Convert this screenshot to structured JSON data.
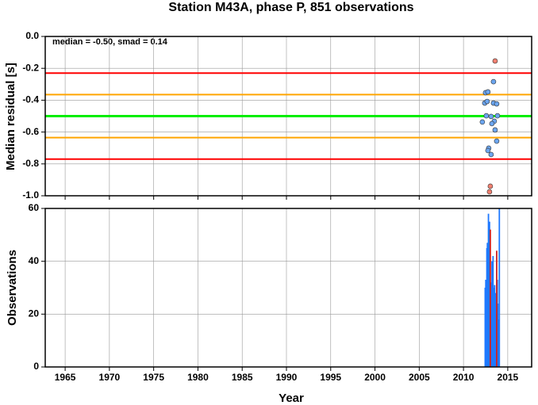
{
  "chart_data": [
    {
      "type": "scatter",
      "title": "Station M43A, phase P, 851 observations",
      "ylabel": "Median residual [s]",
      "annotation": "median = -0.50, smad = 0.14",
      "xlim": [
        1962.75,
        2017.7
      ],
      "xticks": [
        1965,
        1970,
        1975,
        1980,
        1985,
        1990,
        1995,
        2000,
        2005,
        2010,
        2015
      ],
      "ylim": [
        -1,
        0
      ],
      "yticks": [
        {
          "value": 0,
          "label": "0.0"
        },
        -0.2,
        -0.4,
        -0.6,
        -0.8,
        {
          "value": -1,
          "label": "-1.0"
        }
      ],
      "grid": true,
      "hlines": [
        {
          "value": -0.23,
          "color": "#ff0000"
        },
        {
          "value": -0.77,
          "color": "#ff0000"
        },
        {
          "value": -0.365,
          "color": "#ffa500"
        },
        {
          "value": -0.635,
          "color": "#ffa500"
        },
        {
          "value": -0.5,
          "color": "#00ee00"
        }
      ],
      "series": [
        {
          "color": "#6ca6f0",
          "x": [
            2013.39,
            2012.49,
            2012.76,
            2012.4,
            2012.67,
            2013.39,
            2013.75,
            2012.13,
            2012.58,
            2013.12,
            2013.48,
            2013.84,
            2013.21,
            2013.57,
            2013.75,
            2012.85,
            2012.76,
            2013.12
          ],
          "values": [
            -0.284,
            -0.353,
            -0.348,
            -0.418,
            -0.408,
            -0.418,
            -0.423,
            -0.537,
            -0.498,
            -0.502,
            -0.532,
            -0.498,
            -0.547,
            -0.587,
            -0.657,
            -0.701,
            -0.716,
            -0.741
          ]
        },
        {
          "color": "#f08070",
          "x": [
            2013.57,
            2013.03,
            2012.94
          ],
          "values": [
            -0.154,
            -0.94,
            -0.975
          ]
        }
      ]
    },
    {
      "type": "bar",
      "ylabel": "Observations",
      "xlabel": "Year",
      "xlim": [
        1962.75,
        2017.7
      ],
      "xticks": [
        1965,
        1970,
        1975,
        1980,
        1985,
        1990,
        1995,
        2000,
        2005,
        2010,
        2015
      ],
      "ylim": [
        0,
        60
      ],
      "yticks": [
        0,
        20,
        40,
        60
      ],
      "grid": true,
      "series": [
        {
          "color": "#1e78ff",
          "x": [
            2012.45,
            2012.52,
            2012.58,
            2012.64,
            2012.7,
            2012.76,
            2012.82,
            2012.88,
            2012.94,
            2013.0,
            2013.1,
            2013.16,
            2013.22,
            2013.28,
            2013.34,
            2013.4,
            2013.46,
            2013.52,
            2013.6,
            2013.66,
            2013.82,
            2013.88,
            2013.94,
            2014.05
          ],
          "values": [
            30,
            33,
            28,
            45,
            47,
            38,
            58,
            35,
            55,
            30,
            26,
            32,
            40,
            38,
            42,
            30,
            25,
            31,
            28,
            20,
            33,
            24,
            18,
            60
          ]
        },
        {
          "color": "#cc2222",
          "x": [
            2013.03,
            2013.75
          ],
          "values": [
            52,
            44
          ]
        }
      ]
    }
  ]
}
